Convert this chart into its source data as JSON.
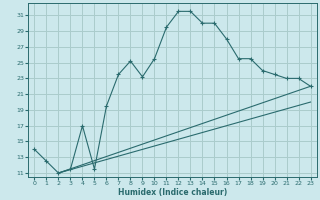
{
  "xlabel": "Humidex (Indice chaleur)",
  "bg_color": "#cce8ec",
  "grid_color": "#aacccc",
  "line_color": "#2a6b6e",
  "xlim": [
    -0.5,
    23.5
  ],
  "ylim": [
    10.5,
    32.5
  ],
  "yticks": [
    11,
    13,
    15,
    17,
    19,
    21,
    23,
    25,
    27,
    29,
    31
  ],
  "xticks": [
    0,
    1,
    2,
    3,
    4,
    5,
    6,
    7,
    8,
    9,
    10,
    11,
    12,
    13,
    14,
    15,
    16,
    17,
    18,
    19,
    20,
    21,
    22,
    23
  ],
  "curve_x": [
    0,
    1,
    2,
    3,
    4,
    5,
    6,
    7,
    8,
    9,
    10,
    11,
    12,
    13,
    14,
    15,
    16,
    17,
    18,
    19,
    20,
    21,
    22,
    23
  ],
  "curve_y": [
    14,
    12.5,
    11,
    11.5,
    17,
    11.5,
    19.5,
    23.5,
    25.2,
    23.2,
    25.5,
    29.5,
    31.5,
    31.5,
    30.0,
    30.0,
    28.0,
    25.5,
    25.5,
    24.0,
    23.5,
    23.0,
    23.0,
    22.0
  ],
  "line2_x": [
    2,
    23
  ],
  "line2_y": [
    11,
    22.0
  ],
  "line3_x": [
    2,
    23
  ],
  "line3_y": [
    11,
    20.0
  ],
  "marker_indices": [
    0,
    1,
    2,
    3,
    4,
    5,
    6,
    7,
    8,
    9,
    10,
    11,
    12,
    13,
    14,
    15,
    16,
    17,
    18,
    19,
    20,
    21,
    22,
    23
  ]
}
